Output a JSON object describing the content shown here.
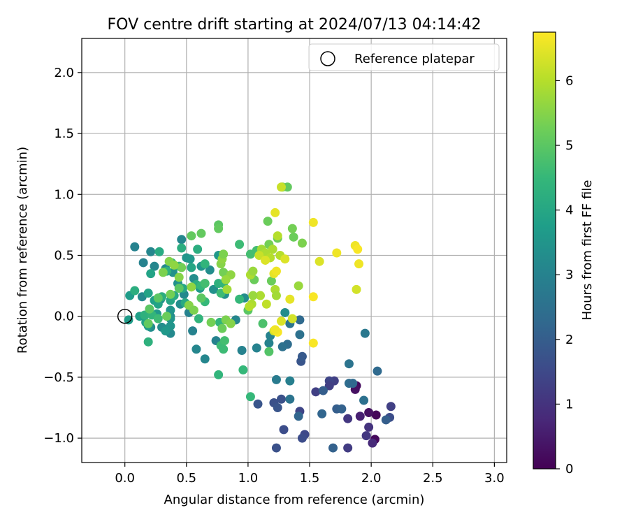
{
  "chart_data": {
    "type": "scatter",
    "title": "FOV centre drift starting at 2024/07/13 04:14:42",
    "xlabel": "Angular distance from reference (arcmin)",
    "ylabel": "Rotation from reference (arcmin)",
    "xlim": [
      -0.35,
      3.1
    ],
    "ylim": [
      -1.2,
      2.28
    ],
    "xticks": [
      0.0,
      0.5,
      1.0,
      1.5,
      2.0,
      2.5,
      3.0
    ],
    "xtick_labels": [
      "0.0",
      "0.5",
      "1.0",
      "1.5",
      "2.0",
      "2.5",
      "3.0"
    ],
    "yticks": [
      -1.0,
      -0.5,
      0.0,
      0.5,
      1.0,
      1.5,
      2.0
    ],
    "ytick_labels": [
      "−1.0",
      "−0.5",
      "0.0",
      "0.5",
      "1.0",
      "1.5",
      "2.0"
    ],
    "grid": true,
    "legend": {
      "placement": "top-right",
      "entries": [
        "Reference platepar"
      ]
    },
    "reference_point": {
      "x": 0.0,
      "y": 0.0,
      "name": "Reference platepar"
    },
    "colorbar": {
      "label": "Hours from first FF file",
      "colormap": "viridis",
      "range": [
        0,
        6.75
      ],
      "ticks": [
        0,
        1,
        2,
        3,
        4,
        5,
        6
      ],
      "tick_labels": [
        "0",
        "1",
        "2",
        "3",
        "4",
        "5",
        "6"
      ]
    },
    "colormap_stops": [
      "#440154",
      "#482878",
      "#3e4989",
      "#31688e",
      "#26828e",
      "#1f9e89",
      "#35b779",
      "#6ece58",
      "#b5de2b",
      "#fde725"
    ],
    "points": [
      {
        "x": 2.04,
        "y": -0.81,
        "t": 0.1
      },
      {
        "x": 2.03,
        "y": -1.01,
        "t": 0.15
      },
      {
        "x": 1.98,
        "y": -0.79,
        "t": 0.3
      },
      {
        "x": 1.88,
        "y": -0.57,
        "t": 0.2
      },
      {
        "x": 1.87,
        "y": -0.6,
        "t": 0.3
      },
      {
        "x": 1.91,
        "y": -0.82,
        "t": 0.6
      },
      {
        "x": 2.01,
        "y": -1.04,
        "t": 0.8
      },
      {
        "x": 1.98,
        "y": -0.91,
        "t": 1.0
      },
      {
        "x": 1.96,
        "y": -0.98,
        "t": 1.1
      },
      {
        "x": 1.81,
        "y": -0.84,
        "t": 1.1
      },
      {
        "x": 1.81,
        "y": -1.08,
        "t": 1.2
      },
      {
        "x": 1.7,
        "y": -0.53,
        "t": 1.3
      },
      {
        "x": 1.66,
        "y": -0.53,
        "t": 1.4
      },
      {
        "x": 1.66,
        "y": -0.57,
        "t": 1.3
      },
      {
        "x": 1.55,
        "y": -0.62,
        "t": 1.3
      },
      {
        "x": 1.42,
        "y": -0.78,
        "t": 1.4
      },
      {
        "x": 1.46,
        "y": -0.97,
        "t": 1.5
      },
      {
        "x": 1.44,
        "y": -1.0,
        "t": 1.6
      },
      {
        "x": 1.29,
        "y": -0.93,
        "t": 1.6
      },
      {
        "x": 1.27,
        "y": -0.68,
        "t": 1.7
      },
      {
        "x": 1.21,
        "y": -0.71,
        "t": 1.7
      },
      {
        "x": 1.24,
        "y": -0.75,
        "t": 1.8
      },
      {
        "x": 1.23,
        "y": -1.08,
        "t": 1.7
      },
      {
        "x": 1.08,
        "y": -0.72,
        "t": 1.8
      },
      {
        "x": 1.43,
        "y": -0.37,
        "t": 1.8
      },
      {
        "x": 1.44,
        "y": -0.33,
        "t": 1.9
      },
      {
        "x": 1.61,
        "y": -0.61,
        "t": 2.0
      },
      {
        "x": 1.72,
        "y": -0.76,
        "t": 2.0
      },
      {
        "x": 1.76,
        "y": -0.76,
        "t": 2.1
      },
      {
        "x": 1.6,
        "y": -0.8,
        "t": 2.2
      },
      {
        "x": 1.69,
        "y": -1.08,
        "t": 2.1
      },
      {
        "x": 2.16,
        "y": -0.74,
        "t": 1.3
      },
      {
        "x": 2.15,
        "y": -0.83,
        "t": 1.6
      },
      {
        "x": 2.12,
        "y": -0.85,
        "t": 2.0
      },
      {
        "x": 2.05,
        "y": -0.45,
        "t": 2.3
      },
      {
        "x": 1.94,
        "y": -0.69,
        "t": 2.5
      },
      {
        "x": 1.82,
        "y": -0.55,
        "t": 2.4
      },
      {
        "x": 1.85,
        "y": -0.55,
        "t": 2.3
      },
      {
        "x": 1.82,
        "y": -0.39,
        "t": 2.6
      },
      {
        "x": 1.95,
        "y": -0.14,
        "t": 2.7
      },
      {
        "x": 1.41,
        "y": -0.82,
        "t": 2.2
      },
      {
        "x": 1.34,
        "y": -0.68,
        "t": 2.6
      },
      {
        "x": 1.32,
        "y": -0.23,
        "t": 2.4
      },
      {
        "x": 1.28,
        "y": -0.25,
        "t": 2.5
      },
      {
        "x": 1.23,
        "y": -0.52,
        "t": 2.8
      },
      {
        "x": 1.34,
        "y": -0.53,
        "t": 2.9
      },
      {
        "x": 1.42,
        "y": -0.15,
        "t": 2.5
      },
      {
        "x": 1.42,
        "y": -0.03,
        "t": 2.3
      },
      {
        "x": 1.34,
        "y": -0.06,
        "t": 2.6
      },
      {
        "x": 1.3,
        "y": 0.03,
        "t": 3.3
      },
      {
        "x": 1.18,
        "y": -0.16,
        "t": 3.0
      },
      {
        "x": 1.17,
        "y": -0.22,
        "t": 3.0
      },
      {
        "x": 1.07,
        "y": -0.26,
        "t": 3.0
      },
      {
        "x": 0.95,
        "y": -0.28,
        "t": 3.0
      },
      {
        "x": 0.9,
        "y": -0.03,
        "t": 3.1
      },
      {
        "x": 0.97,
        "y": 0.15,
        "t": 3.3
      },
      {
        "x": 0.81,
        "y": 0.18,
        "t": 3.4
      },
      {
        "x": 0.74,
        "y": -0.2,
        "t": 3.0
      },
      {
        "x": 0.65,
        "y": -0.35,
        "t": 3.1
      },
      {
        "x": 0.58,
        "y": -0.27,
        "t": 3.1
      },
      {
        "x": 0.55,
        "y": -0.12,
        "t": 3.0
      },
      {
        "x": 0.52,
        "y": 0.03,
        "t": 3.0
      },
      {
        "x": 0.48,
        "y": 0.18,
        "t": 3.2
      },
      {
        "x": 0.45,
        "y": 0.1,
        "t": 3.3
      },
      {
        "x": 0.37,
        "y": 0.0,
        "t": 3.2
      },
      {
        "x": 0.37,
        "y": -0.14,
        "t": 3.2
      },
      {
        "x": 0.34,
        "y": -0.11,
        "t": 3.2
      },
      {
        "x": 0.29,
        "y": 0.14,
        "t": 3.3
      },
      {
        "x": 0.3,
        "y": -0.09,
        "t": 3.3
      },
      {
        "x": 0.21,
        "y": -0.09,
        "t": 3.3
      },
      {
        "x": 0.14,
        "y": 0.16,
        "t": 3.2
      },
      {
        "x": 0.08,
        "y": 0.57,
        "t": 3.0
      },
      {
        "x": 0.15,
        "y": 0.44,
        "t": 3.0
      },
      {
        "x": 0.21,
        "y": 0.53,
        "t": 3.1
      },
      {
        "x": 0.24,
        "y": 0.41,
        "t": 3.1
      },
      {
        "x": 0.33,
        "y": 0.39,
        "t": 3.2
      },
      {
        "x": 0.39,
        "y": 0.36,
        "t": 3.4
      },
      {
        "x": 0.43,
        "y": 0.27,
        "t": 3.4
      },
      {
        "x": 0.46,
        "y": 0.63,
        "t": 3.1
      },
      {
        "x": 0.5,
        "y": 0.48,
        "t": 3.5
      },
      {
        "x": 0.53,
        "y": 0.47,
        "t": 3.6
      },
      {
        "x": 0.62,
        "y": 0.41,
        "t": 3.5
      },
      {
        "x": 0.56,
        "y": 0.31,
        "t": 3.3
      },
      {
        "x": 0.61,
        "y": 0.23,
        "t": 3.6
      },
      {
        "x": 0.69,
        "y": 0.38,
        "t": 3.3
      },
      {
        "x": 0.76,
        "y": 0.5,
        "t": 3.6
      },
      {
        "x": 0.72,
        "y": 0.22,
        "t": 3.4
      },
      {
        "x": 0.37,
        "y": -0.08,
        "t": 3.5
      },
      {
        "x": 0.33,
        "y": -0.12,
        "t": 3.6
      },
      {
        "x": 0.26,
        "y": 0.02,
        "t": 3.6
      },
      {
        "x": 0.19,
        "y": -0.08,
        "t": 3.7
      },
      {
        "x": 0.17,
        "y": -0.05,
        "t": 3.9
      },
      {
        "x": 0.12,
        "y": 0.0,
        "t": 3.8
      },
      {
        "x": 0.03,
        "y": -0.03,
        "t": 3.7
      },
      {
        "x": 0.04,
        "y": 0.17,
        "t": 3.7
      },
      {
        "x": 0.08,
        "y": 0.21,
        "t": 4.2
      },
      {
        "x": 0.19,
        "y": 0.19,
        "t": 3.9
      },
      {
        "x": 0.24,
        "y": 0.13,
        "t": 3.8
      },
      {
        "x": 0.27,
        "y": 0.1,
        "t": 3.9
      },
      {
        "x": 0.3,
        "y": 0.16,
        "t": 4.2
      },
      {
        "x": 0.37,
        "y": 0.13,
        "t": 4.0
      },
      {
        "x": 0.4,
        "y": 0.17,
        "t": 4.1
      },
      {
        "x": 0.37,
        "y": 0.05,
        "t": 3.5
      },
      {
        "x": 0.37,
        "y": -0.02,
        "t": 3.5
      },
      {
        "x": 0.16,
        "y": 0.01,
        "t": 4.3
      },
      {
        "x": 0.19,
        "y": -0.21,
        "t": 4.3
      },
      {
        "x": 0.22,
        "y": 0.01,
        "t": 4.4
      },
      {
        "x": 0.27,
        "y": -0.02,
        "t": 4.6
      },
      {
        "x": 0.21,
        "y": 0.35,
        "t": 3.9
      },
      {
        "x": 0.28,
        "y": 0.53,
        "t": 4.1
      },
      {
        "x": 0.34,
        "y": 0.37,
        "t": 4.3
      },
      {
        "x": 0.38,
        "y": 0.44,
        "t": 4.5
      },
      {
        "x": 0.44,
        "y": 0.41,
        "t": 4.3
      },
      {
        "x": 0.46,
        "y": 0.56,
        "t": 4.2
      },
      {
        "x": 0.47,
        "y": 0.23,
        "t": 4.0
      },
      {
        "x": 0.49,
        "y": 0.11,
        "t": 4.1
      },
      {
        "x": 0.54,
        "y": 0.4,
        "t": 4.0
      },
      {
        "x": 0.58,
        "y": 0.26,
        "t": 4.2
      },
      {
        "x": 0.62,
        "y": 0.25,
        "t": 4.5
      },
      {
        "x": 0.65,
        "y": 0.43,
        "t": 4.4
      },
      {
        "x": 0.59,
        "y": 0.55,
        "t": 4.2
      },
      {
        "x": 0.65,
        "y": 0.27,
        "t": 4.7
      },
      {
        "x": 0.65,
        "y": 0.12,
        "t": 4.5
      },
      {
        "x": 0.6,
        "y": -0.02,
        "t": 4.4
      },
      {
        "x": 0.76,
        "y": 0.27,
        "t": 4.3
      },
      {
        "x": 0.8,
        "y": 0.27,
        "t": 4.4
      },
      {
        "x": 0.78,
        "y": 0.19,
        "t": 4.6
      },
      {
        "x": 0.77,
        "y": -0.05,
        "t": 4.4
      },
      {
        "x": 0.76,
        "y": -0.48,
        "t": 4.4
      },
      {
        "x": 0.78,
        "y": -0.24,
        "t": 4.6
      },
      {
        "x": 0.81,
        "y": -0.2,
        "t": 4.7
      },
      {
        "x": 0.8,
        "y": -0.27,
        "t": 4.6
      },
      {
        "x": 0.93,
        "y": 0.14,
        "t": 4.5
      },
      {
        "x": 0.93,
        "y": 0.59,
        "t": 4.6
      },
      {
        "x": 0.96,
        "y": -0.44,
        "t": 4.5
      },
      {
        "x": 1.02,
        "y": -0.66,
        "t": 4.5
      },
      {
        "x": 1.02,
        "y": 0.51,
        "t": 4.7
      },
      {
        "x": 1.07,
        "y": 0.54,
        "t": 4.7
      },
      {
        "x": 1.12,
        "y": -0.06,
        "t": 4.8
      },
      {
        "x": 1.17,
        "y": -0.29,
        "t": 4.9
      },
      {
        "x": 1.0,
        "y": 0.05,
        "t": 5.0
      },
      {
        "x": 1.05,
        "y": 0.3,
        "t": 5.2
      },
      {
        "x": 1.19,
        "y": 0.29,
        "t": 5.2
      },
      {
        "x": 1.41,
        "y": 0.25,
        "t": 5.7
      },
      {
        "x": 1.44,
        "y": 0.6,
        "t": 5.4
      },
      {
        "x": 1.37,
        "y": 0.65,
        "t": 5.2
      },
      {
        "x": 1.36,
        "y": 0.72,
        "t": 5.3
      },
      {
        "x": 1.24,
        "y": 0.64,
        "t": 5.2
      },
      {
        "x": 1.17,
        "y": 0.59,
        "t": 5.3
      },
      {
        "x": 1.16,
        "y": 0.78,
        "t": 5.2
      },
      {
        "x": 1.28,
        "y": 1.06,
        "t": 5.4
      },
      {
        "x": 1.32,
        "y": 1.06,
        "t": 5.1
      },
      {
        "x": 0.44,
        "y": 0.23,
        "t": 5.0
      },
      {
        "x": 0.54,
        "y": 0.66,
        "t": 5.1
      },
      {
        "x": 0.62,
        "y": 0.68,
        "t": 5.1
      },
      {
        "x": 0.76,
        "y": 0.75,
        "t": 5.0
      },
      {
        "x": 0.76,
        "y": 0.72,
        "t": 5.1
      },
      {
        "x": 0.62,
        "y": 0.15,
        "t": 5.0
      },
      {
        "x": 0.27,
        "y": 0.15,
        "t": 5.0
      },
      {
        "x": 0.2,
        "y": 0.06,
        "t": 5.0
      },
      {
        "x": 0.19,
        "y": -0.06,
        "t": 5.1
      },
      {
        "x": 0.34,
        "y": 0.0,
        "t": 5.2
      },
      {
        "x": 0.37,
        "y": 0.18,
        "t": 5.3
      },
      {
        "x": 0.44,
        "y": 0.32,
        "t": 5.5
      },
      {
        "x": 0.46,
        "y": 0.4,
        "t": 5.3
      },
      {
        "x": 0.36,
        "y": 0.45,
        "t": 5.5
      },
      {
        "x": 0.4,
        "y": 0.42,
        "t": 5.6
      },
      {
        "x": 0.31,
        "y": 0.36,
        "t": 5.4
      },
      {
        "x": 0.54,
        "y": 0.24,
        "t": 5.6
      },
      {
        "x": 0.52,
        "y": 0.09,
        "t": 5.5
      },
      {
        "x": 0.56,
        "y": 0.05,
        "t": 5.4
      },
      {
        "x": 0.7,
        "y": -0.05,
        "t": 5.3
      },
      {
        "x": 0.79,
        "y": -0.1,
        "t": 5.2
      },
      {
        "x": 0.82,
        "y": -0.03,
        "t": 5.4
      },
      {
        "x": 0.86,
        "y": -0.06,
        "t": 5.5
      },
      {
        "x": 0.8,
        "y": 0.36,
        "t": 5.3
      },
      {
        "x": 0.78,
        "y": 0.43,
        "t": 5.5
      },
      {
        "x": 0.79,
        "y": 0.47,
        "t": 5.6
      },
      {
        "x": 0.8,
        "y": 0.51,
        "t": 5.4
      },
      {
        "x": 0.86,
        "y": 0.34,
        "t": 5.6
      },
      {
        "x": 0.82,
        "y": 0.3,
        "t": 5.7
      },
      {
        "x": 0.83,
        "y": 0.22,
        "t": 5.8
      },
      {
        "x": 1.02,
        "y": 0.34,
        "t": 5.9
      },
      {
        "x": 1.04,
        "y": 0.37,
        "t": 5.7
      },
      {
        "x": 1.11,
        "y": 0.55,
        "t": 5.8
      },
      {
        "x": 1.14,
        "y": 0.52,
        "t": 5.9
      },
      {
        "x": 1.2,
        "y": 0.55,
        "t": 5.9
      },
      {
        "x": 1.18,
        "y": 0.48,
        "t": 6.0
      },
      {
        "x": 1.26,
        "y": 0.5,
        "t": 6.0
      },
      {
        "x": 1.24,
        "y": 0.66,
        "t": 6.0
      },
      {
        "x": 1.22,
        "y": 0.22,
        "t": 5.9
      },
      {
        "x": 1.23,
        "y": 0.17,
        "t": 5.8
      },
      {
        "x": 1.1,
        "y": 0.17,
        "t": 5.9
      },
      {
        "x": 1.04,
        "y": 0.17,
        "t": 5.7
      },
      {
        "x": 1.03,
        "y": 0.1,
        "t": 5.9
      },
      {
        "x": 1.01,
        "y": 0.08,
        "t": 6.0
      },
      {
        "x": 1.15,
        "y": 0.1,
        "t": 6.1
      },
      {
        "x": 1.21,
        "y": -0.12,
        "t": 6.3
      },
      {
        "x": 1.27,
        "y": -0.04,
        "t": 6.4
      },
      {
        "x": 1.36,
        "y": -0.02,
        "t": 6.3
      },
      {
        "x": 1.21,
        "y": 0.35,
        "t": 6.5
      },
      {
        "x": 1.23,
        "y": 0.37,
        "t": 6.6
      },
      {
        "x": 1.22,
        "y": 0.85,
        "t": 6.5
      },
      {
        "x": 1.27,
        "y": 1.06,
        "t": 6.2
      },
      {
        "x": 1.09,
        "y": 0.5,
        "t": 6.2
      },
      {
        "x": 1.14,
        "y": 0.46,
        "t": 6.4
      },
      {
        "x": 1.3,
        "y": 0.47,
        "t": 6.4
      },
      {
        "x": 1.34,
        "y": 0.14,
        "t": 6.5
      },
      {
        "x": 1.53,
        "y": 0.77,
        "t": 6.6
      },
      {
        "x": 1.58,
        "y": 0.45,
        "t": 6.4
      },
      {
        "x": 1.53,
        "y": 0.16,
        "t": 6.7
      },
      {
        "x": 1.53,
        "y": -0.22,
        "t": 6.7
      },
      {
        "x": 1.72,
        "y": 0.52,
        "t": 6.6
      },
      {
        "x": 1.87,
        "y": 0.58,
        "t": 6.6
      },
      {
        "x": 1.89,
        "y": 0.55,
        "t": 6.7
      },
      {
        "x": 1.9,
        "y": 0.43,
        "t": 6.6
      },
      {
        "x": 1.88,
        "y": 0.22,
        "t": 6.3
      },
      {
        "x": 1.24,
        "y": -0.13,
        "t": 6.7
      },
      {
        "x": 1.22,
        "y": -0.11,
        "t": 6.6
      }
    ]
  }
}
